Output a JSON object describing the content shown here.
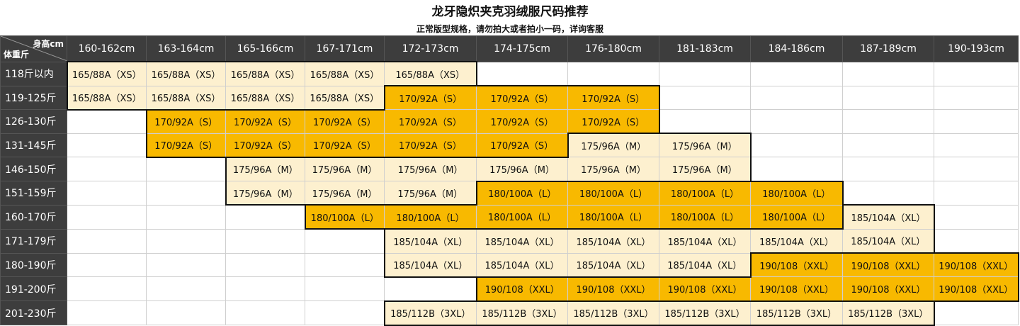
{
  "title": "龙牙隐炽夹克羽绒服尺码推荐",
  "subtitle": "正常版型规格，请勿拍大或者拍小一码，详询客服",
  "corner": {
    "height_label": "身高cm",
    "weight_label": "体重斤"
  },
  "heights": [
    "160-162cm",
    "163-164cm",
    "165-166cm",
    "167-171cm",
    "172-173cm",
    "174-175cm",
    "176-180cm",
    "181-183cm",
    "184-186cm",
    "187-189cm",
    "190-193cm"
  ],
  "rows": [
    {
      "weight": "118斤以内",
      "cells": [
        "165/88A（XS）",
        "165/88A（XS）",
        "165/88A（XS）",
        "165/88A（XS）",
        "165/88A（XS）",
        "",
        "",
        "",
        "",
        "",
        ""
      ]
    },
    {
      "weight": "119-125斤",
      "cells": [
        "165/88A（XS）",
        "165/88A（XS）",
        "165/88A（XS）",
        "165/88A（XS）",
        "170/92A（S）",
        "170/92A（S）",
        "170/92A（S）",
        "",
        "",
        "",
        ""
      ]
    },
    {
      "weight": "126-130斤",
      "cells": [
        "",
        "170/92A（S）",
        "170/92A（S）",
        "170/92A（S）",
        "170/92A（S）",
        "170/92A（S）",
        "170/92A（S）",
        "",
        "",
        "",
        ""
      ]
    },
    {
      "weight": "131-145斤",
      "cells": [
        "",
        "170/92A（S）",
        "170/92A（S）",
        "170/92A（S）",
        "170/92A（S）",
        "170/92A（S）",
        "175/96A（M）",
        "175/96A（M）",
        "",
        "",
        ""
      ]
    },
    {
      "weight": "146-150斤",
      "cells": [
        "",
        "",
        "175/96A（M）",
        "175/96A（M）",
        "175/96A（M）",
        "175/96A（M）",
        "175/96A（M）",
        "175/96A（M）",
        "",
        "",
        ""
      ]
    },
    {
      "weight": "151-159斤",
      "cells": [
        "",
        "",
        "175/96A（M）",
        "175/96A（M）",
        "175/96A（M）",
        "180/100A（L）",
        "180/100A（L）",
        "180/100A（L）",
        "180/100A（L）",
        "",
        ""
      ]
    },
    {
      "weight": "160-170斤",
      "cells": [
        "",
        "",
        "",
        "180/100A（L）",
        "180/100A（L）",
        "180/100A（L）",
        "180/100A（L）",
        "180/100A（L）",
        "180/100A（L）",
        "185/104A（XL）",
        ""
      ]
    },
    {
      "weight": "171-179斤",
      "cells": [
        "",
        "",
        "",
        "",
        "185/104A（XL）",
        "185/104A（XL）",
        "185/104A（XL）",
        "185/104A（XL）",
        "185/104A（XL）",
        "185/104A（XL）",
        ""
      ]
    },
    {
      "weight": "180-190斤",
      "cells": [
        "",
        "",
        "",
        "",
        "185/104A（XL）",
        "185/104A（XL）",
        "185/104A（XL）",
        "185/104A（XL）",
        "190/108（XXL）",
        "190/108（XXL）",
        "190/108（XXL）"
      ]
    },
    {
      "weight": "191-200斤",
      "cells": [
        "",
        "",
        "",
        "",
        "",
        "190/108（XXL）",
        "190/108（XXL）",
        "190/108（XXL）",
        "190/108（XXL）",
        "190/108（XXL）",
        "190/108（XXL）"
      ]
    },
    {
      "weight": "201-230斤",
      "cells": [
        "",
        "",
        "",
        "",
        "185/112B（3XL）",
        "185/112B（3XL）",
        "185/112B（3XL）",
        "185/112B（3XL）",
        "185/112B（3XL）",
        "185/112B（3XL）",
        ""
      ]
    }
  ],
  "colors": {
    "header_bg": "#3d3d3d",
    "light_cell": "#fdf0cf",
    "dark_cell": "#f8b900"
  }
}
